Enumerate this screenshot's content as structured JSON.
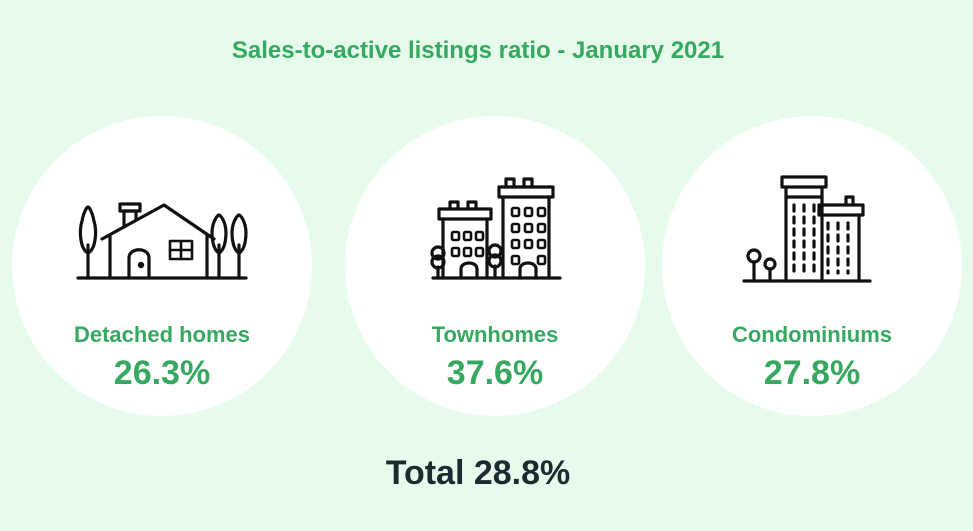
{
  "title": "Sales-to-active listings ratio - January 2021",
  "categories": [
    {
      "label": "Detached homes",
      "value": "26.3%",
      "icon": "house-icon"
    },
    {
      "label": "Townhomes",
      "value": "37.6%",
      "icon": "townhouses-icon"
    },
    {
      "label": "Condominiums",
      "value": "27.8%",
      "icon": "condo-building-icon"
    }
  ],
  "total": "Total 28.8%",
  "colors": {
    "background": "#e6fbec",
    "accent": "#36a860",
    "circle": "#ffffff",
    "total_text": "#1d2b30"
  }
}
